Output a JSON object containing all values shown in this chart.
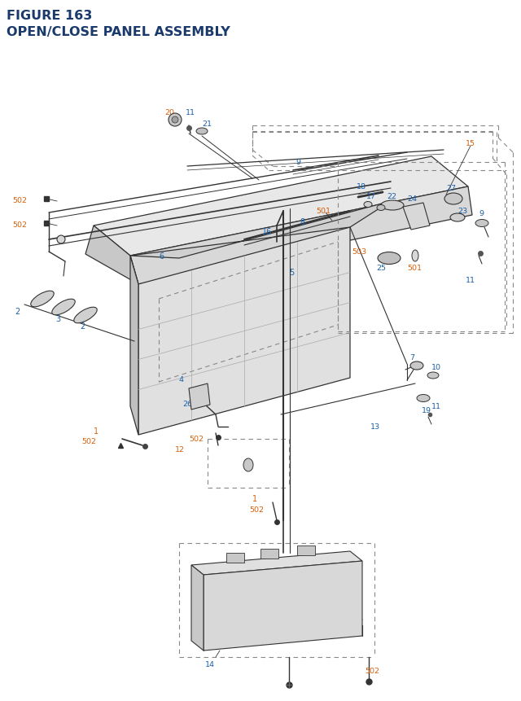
{
  "title_line1": "FIGURE 163",
  "title_line2": "OPEN/CLOSE PANEL ASSEMBLY",
  "title_color": "#1a3a6b",
  "title_fontsize": 11.5,
  "bg_color": "#ffffff",
  "bc": "#1a5fa8",
  "oc": "#d4600a",
  "dc": "#333333",
  "dashed_color": "#888888"
}
